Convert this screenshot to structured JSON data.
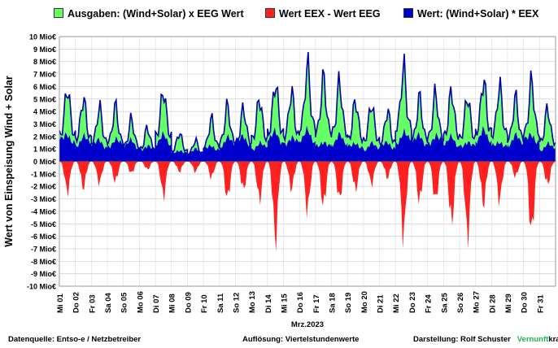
{
  "chart_data": {
    "type": "area",
    "title": "",
    "ylabel": "Wert von Einspeisung Wind + Solar",
    "xlabel": "Mrz.2023",
    "ylim": [
      -10,
      10
    ],
    "yticks": [
      "10 Mio€",
      "9 Mio€",
      "8 Mio€",
      "7 Mio€",
      "6 Mio€",
      "5 Mio€",
      "4 Mio€",
      "3 Mio€",
      "2 Mio€",
      "1 Mio€",
      "0 Mio€",
      "-1 Mio€",
      "-2 Mio€",
      "-3 Mio€",
      "-4 Mio€",
      "-5 Mio€",
      "-6 Mio€",
      "-7 Mio€",
      "-8 Mio€",
      "-9 Mio€",
      "-10 Mio€"
    ],
    "x_ticks": [
      "Mi 01",
      "Do 02",
      "Fr 03",
      "Sa 04",
      "So 05",
      "Mo 06",
      "Di 07",
      "Mi 08",
      "Do 09",
      "Fr 10",
      "Sa 11",
      "So 12",
      "Mo 13",
      "Di 14",
      "Mi 15",
      "Do 16",
      "Fr 17",
      "Sa 18",
      "So 19",
      "Mo 20",
      "Di 21",
      "Mi 22",
      "Do 23",
      "Fr 24",
      "Sa 25",
      "So 26",
      "Mo 27",
      "Di 28",
      "Mi 29",
      "Do 30",
      "Fr 31"
    ],
    "grid": true,
    "legend_position": "top",
    "series": [
      {
        "name": "Ausgaben: (Wind+Solar) x EEG Wert",
        "color": "#66ff66",
        "daily_peak": [
          7.0,
          6.0,
          5.1,
          5.2,
          4.0,
          3.2,
          6.8,
          2.7,
          2.0,
          4.0,
          5.2,
          5.0,
          6.0,
          7.5,
          6.6,
          9.0,
          7.8,
          7.5,
          5.8,
          5.5,
          4.8,
          8.9,
          6.0,
          6.4,
          6.7,
          6.2,
          7.8,
          7.1,
          6.0,
          7.5,
          5.0
        ]
      },
      {
        "name": "Wert EEX - Wert EEG",
        "color": "#ff2020",
        "daily_min": [
          -3.0,
          -2.6,
          -2.1,
          -2.0,
          -1.2,
          -0.8,
          -3.4,
          -1.0,
          -1.0,
          -1.6,
          -3.7,
          -2.8,
          -3.8,
          -7.7,
          -2.7,
          -4.8,
          -4.4,
          -3.8,
          -2.8,
          -2.2,
          -1.6,
          -7.3,
          -4.0,
          -3.9,
          -6.0,
          -7.3,
          -4.2,
          -3.8,
          -1.5,
          -7.1,
          -2.3
        ]
      },
      {
        "name": "Wert: (Wind+Solar) * EEX",
        "color": "#0000cc",
        "daily_peak": [
          4.0,
          3.4,
          3.0,
          3.2,
          2.8,
          2.4,
          3.4,
          1.7,
          1.6,
          2.4,
          3.2,
          3.6,
          2.6,
          4.0,
          3.6,
          4.0,
          3.0,
          3.4,
          2.8,
          2.4,
          2.8,
          4.0,
          3.6,
          3.8,
          3.2,
          3.0,
          4.0,
          3.0,
          3.4,
          4.0,
          2.4
        ]
      }
    ]
  },
  "footer": {
    "source": "Datenquelle:  Entso-e  / Netzbetreiber",
    "resolution": "Auflösung: Viertelstundenwerte",
    "author": "Darstellung:  Rolf Schuster",
    "brand_a": "Vernunft",
    "brand_b": "kraft"
  }
}
